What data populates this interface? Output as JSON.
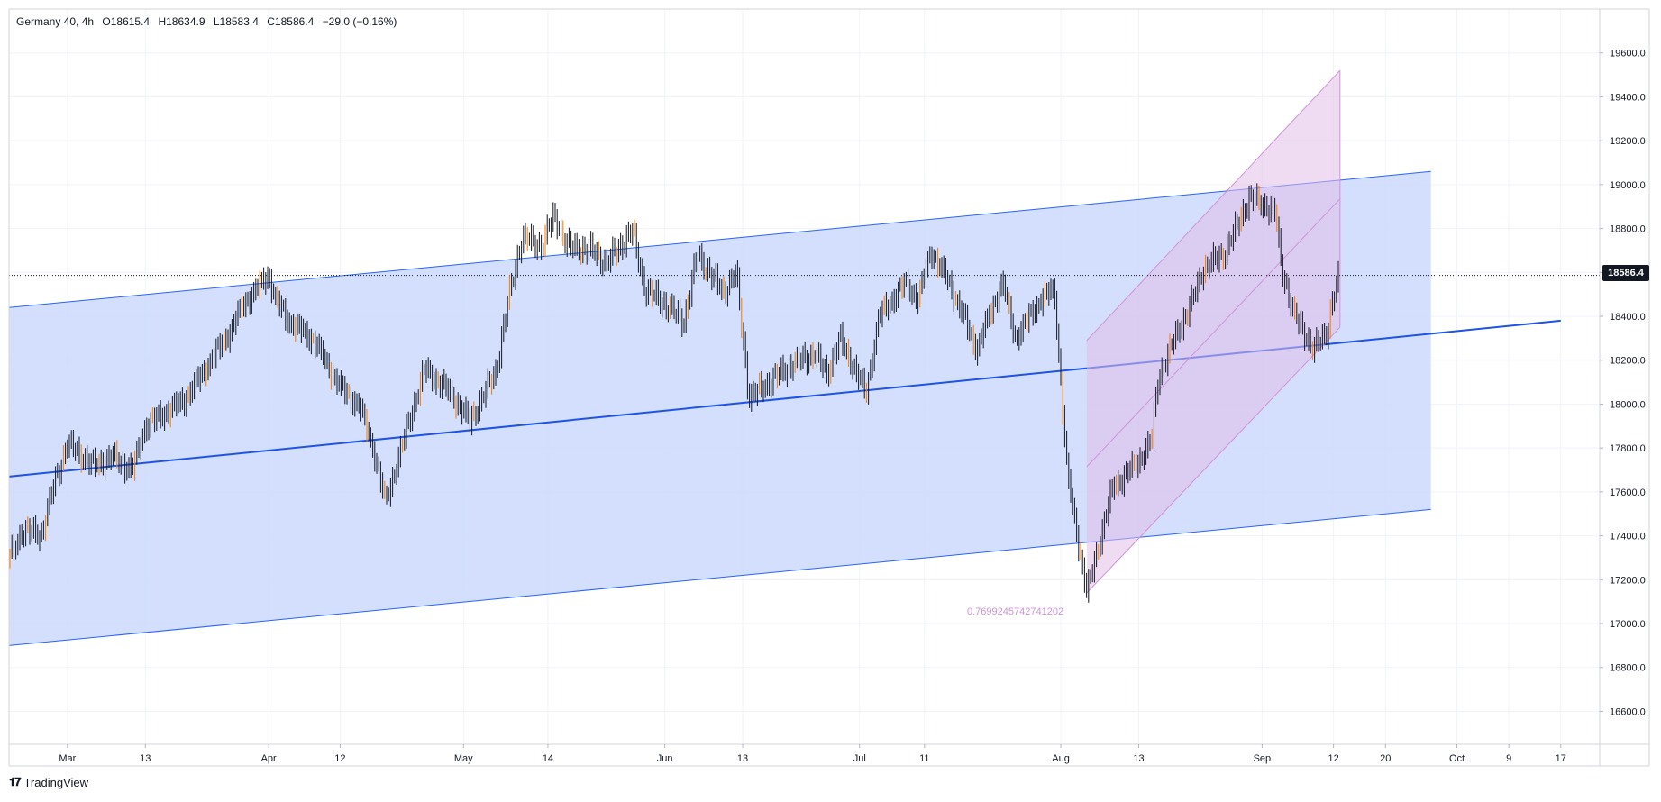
{
  "header": {
    "symbol": "Germany 40, 4h",
    "open": "O18615.4",
    "high": "H18634.9",
    "low": "L18583.4",
    "close": "C18586.4",
    "change": "−29.0 (−0.16%)"
  },
  "price_tag": "18586.4",
  "fib_label": "0.7699245742741202",
  "brand": {
    "name": "TradingView"
  },
  "colors": {
    "channel_fill": "#cbd9fb",
    "channel_line": "#2962ff",
    "pink_fill": "#e1bee7",
    "pink_line": "#ce93d8",
    "bar_up": "#131722",
    "bar_down": "#131722",
    "bar_accent": "#f57c00",
    "price_tag_bg": "#131722"
  },
  "chart_data": {
    "type": "ohlc",
    "title": "Germany 40, 4h",
    "ylim": [
      16450,
      19800
    ],
    "y_ticks": [
      "19600.0",
      "19400.0",
      "19200.0",
      "19000.0",
      "18800.0",
      "18600.0",
      "18400.0",
      "18200.0",
      "18000.0",
      "17800.0",
      "17600.0",
      "17400.0",
      "17200.0",
      "17000.0",
      "16800.0",
      "16600.0"
    ],
    "x_ticks": [
      "Mar",
      "13",
      "Apr",
      "12",
      "May",
      "14",
      "Jun",
      "13",
      "Jul",
      "11",
      "Aug",
      "13",
      "Sep",
      "12",
      "20",
      "Oct",
      "9",
      "17"
    ],
    "last_price": 18586.4,
    "path": [
      [
        "2024-02-21",
        17300
      ],
      [
        "2024-02-23",
        17420
      ],
      [
        "2024-02-26",
        17410
      ],
      [
        "2024-02-28",
        17640
      ],
      [
        "2024-03-01",
        17820
      ],
      [
        "2024-03-05",
        17720
      ],
      [
        "2024-03-08",
        17760
      ],
      [
        "2024-03-11",
        17700
      ],
      [
        "2024-03-13",
        17900
      ],
      [
        "2024-03-15",
        17940
      ],
      [
        "2024-03-19",
        18020
      ],
      [
        "2024-03-22",
        18150
      ],
      [
        "2024-03-26",
        18330
      ],
      [
        "2024-03-28",
        18450
      ],
      [
        "2024-04-01",
        18590
      ],
      [
        "2024-04-02",
        18480
      ],
      [
        "2024-04-04",
        18380
      ],
      [
        "2024-04-08",
        18290
      ],
      [
        "2024-04-10",
        18180
      ],
      [
        "2024-04-12",
        18080
      ],
      [
        "2024-04-15",
        17990
      ],
      [
        "2024-04-17",
        17810
      ],
      [
        "2024-04-19",
        17550
      ],
      [
        "2024-04-22",
        17860
      ],
      [
        "2024-04-25",
        18160
      ],
      [
        "2024-04-29",
        18050
      ],
      [
        "2024-05-02",
        17920
      ],
      [
        "2024-05-06",
        18150
      ],
      [
        "2024-05-08",
        18490
      ],
      [
        "2024-05-10",
        18760
      ],
      [
        "2024-05-13",
        18720
      ],
      [
        "2024-05-15",
        18860
      ],
      [
        "2024-05-17",
        18720
      ],
      [
        "2024-05-21",
        18700
      ],
      [
        "2024-05-23",
        18640
      ],
      [
        "2024-05-27",
        18790
      ],
      [
        "2024-05-29",
        18520
      ],
      [
        "2024-05-31",
        18480
      ],
      [
        "2024-06-04",
        18380
      ],
      [
        "2024-06-06",
        18680
      ],
      [
        "2024-06-10",
        18510
      ],
      [
        "2024-06-12",
        18600
      ],
      [
        "2024-06-14",
        18030
      ],
      [
        "2024-06-18",
        18120
      ],
      [
        "2024-06-20",
        18170
      ],
      [
        "2024-06-24",
        18230
      ],
      [
        "2024-06-26",
        18140
      ],
      [
        "2024-06-28",
        18300
      ],
      [
        "2024-07-02",
        18050
      ],
      [
        "2024-07-04",
        18400
      ],
      [
        "2024-07-08",
        18550
      ],
      [
        "2024-07-10",
        18480
      ],
      [
        "2024-07-12",
        18700
      ],
      [
        "2024-07-15",
        18540
      ],
      [
        "2024-07-17",
        18400
      ],
      [
        "2024-07-19",
        18250
      ],
      [
        "2024-07-23",
        18560
      ],
      [
        "2024-07-25",
        18300
      ],
      [
        "2024-07-29",
        18480
      ],
      [
        "2024-07-31",
        18520
      ],
      [
        "2024-08-02",
        17680
      ],
      [
        "2024-08-05",
        17140
      ],
      [
        "2024-08-07",
        17380
      ],
      [
        "2024-08-09",
        17620
      ],
      [
        "2024-08-13",
        17740
      ],
      [
        "2024-08-15",
        17840
      ],
      [
        "2024-08-16",
        18120
      ],
      [
        "2024-08-19",
        18330
      ],
      [
        "2024-08-21",
        18450
      ],
      [
        "2024-08-23",
        18620
      ],
      [
        "2024-08-26",
        18680
      ],
      [
        "2024-08-28",
        18800
      ],
      [
        "2024-08-30",
        18940
      ],
      [
        "2024-09-03",
        18880
      ],
      [
        "2024-09-04",
        18620
      ],
      [
        "2024-09-06",
        18400
      ],
      [
        "2024-09-09",
        18250
      ],
      [
        "2024-09-11",
        18330
      ],
      [
        "2024-09-12",
        18500
      ],
      [
        "2024-09-13",
        18586
      ]
    ],
    "drawings": {
      "blue_channel": {
        "top_line": [
          [
            "2024-02-21",
            18440
          ],
          [
            "2024-09-27",
            19060
          ]
        ],
        "mid_line": [
          [
            "2024-02-21",
            17670
          ],
          [
            "2024-10-17",
            18380
          ]
        ],
        "bottom_line": [
          [
            "2024-02-21",
            16900
          ],
          [
            "2024-09-27",
            17520
          ]
        ]
      },
      "pink_channel": {
        "upper_line": [
          [
            "2024-08-05",
            18290
          ],
          [
            "2024-09-13",
            19520
          ]
        ],
        "lower_line": [
          [
            "2024-08-05",
            17140
          ],
          [
            "2024-09-13",
            18350
          ]
        ]
      },
      "fib_label": "0.7699245742741202"
    }
  }
}
